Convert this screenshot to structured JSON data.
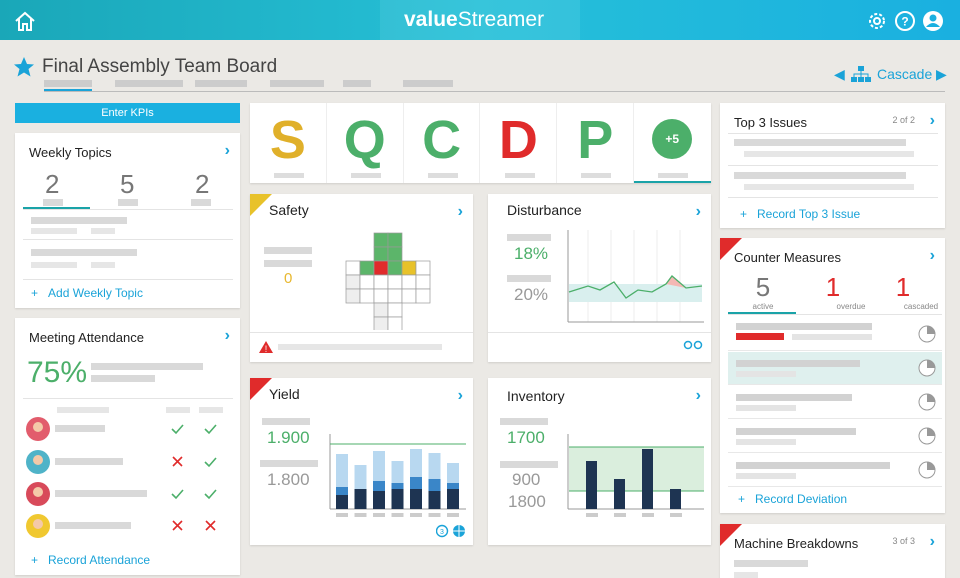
{
  "header": {
    "brand_left": "value",
    "brand_right": "Streamer"
  },
  "board": {
    "title": "Final Assembly Team Board",
    "cascade": "Cascade"
  },
  "kpi_button": "Enter KPIs",
  "sqcdp": {
    "letters": [
      "S",
      "Q",
      "C",
      "D",
      "P"
    ],
    "more": "+5"
  },
  "weekly_topics": {
    "title": "Weekly Topics",
    "counts": [
      "2",
      "5",
      "2"
    ],
    "action": "Add Weekly Topic"
  },
  "meeting_attendance": {
    "title": "Meeting Attendance",
    "rate": "75%",
    "action": "Record Attendance"
  },
  "safety": {
    "title": "Safety",
    "value": "0"
  },
  "disturbance": {
    "title": "Disturbance",
    "values": [
      "18%",
      "20%"
    ]
  },
  "yield": {
    "title": "Yield",
    "values": [
      "1.900",
      "1.800"
    ]
  },
  "inventory": {
    "title": "Inventory",
    "values": [
      "1700",
      "900",
      "1800"
    ]
  },
  "top_issues": {
    "title": "Top 3 Issues",
    "pager": "2 of 2",
    "action": "Record Top 3 Issue"
  },
  "counter_measures": {
    "title": "Counter Measures",
    "stats": [
      {
        "count": "5",
        "label": "active"
      },
      {
        "count": "1",
        "label": "overdue"
      },
      {
        "count": "1",
        "label": "cascaded"
      }
    ],
    "action": "Record Deviation"
  },
  "machine_breakdowns": {
    "title": "Machine Breakdowns",
    "pager": "3 of 3"
  }
}
